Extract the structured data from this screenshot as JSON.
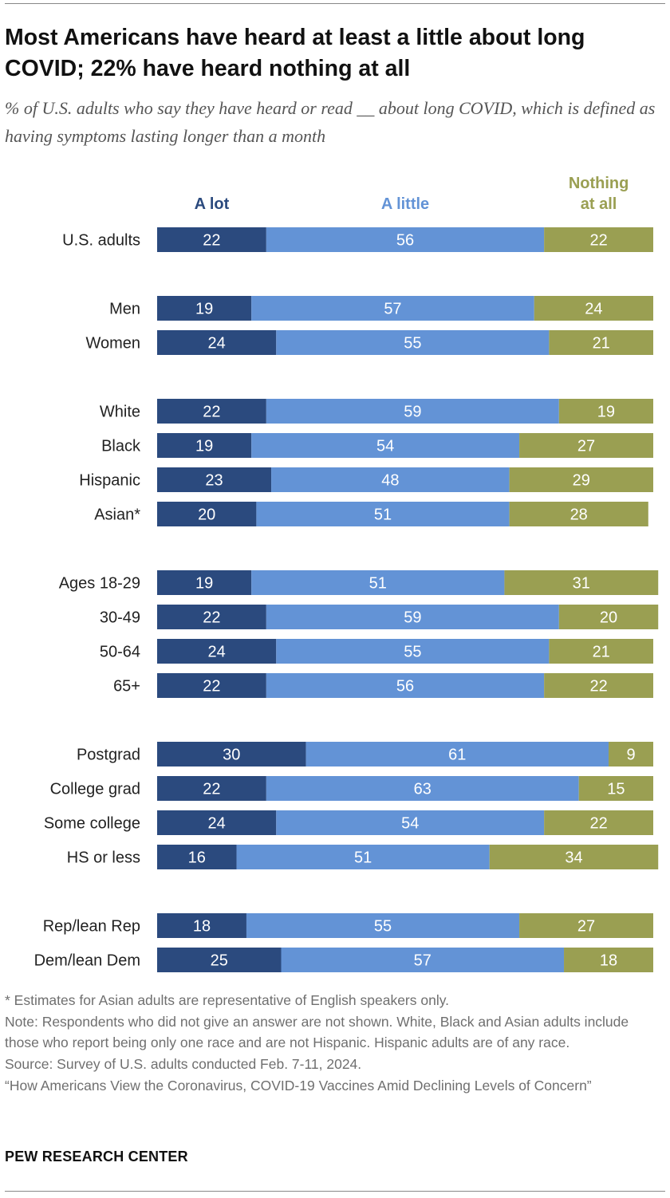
{
  "title": "Most Americans have heard at least a little about long COVID; 22% have heard nothing at all",
  "subtitle": "% of U.S. adults who say they have heard or read __ about long COVID, which is defined as having symptoms lasting longer than a month",
  "chart_data": {
    "type": "bar",
    "orientation": "horizontal",
    "stacked": true,
    "xlim": [
      0,
      100
    ],
    "grid": false,
    "legend": "top",
    "categories": [
      "U.S. adults",
      "Men",
      "Women",
      "White",
      "Black",
      "Hispanic",
      "Asian*",
      "Ages 18-29",
      "30-49",
      "50-64",
      "65+",
      "Postgrad",
      "College grad",
      "Some college",
      "HS or less",
      "Rep/lean Rep",
      "Dem/lean Dem"
    ],
    "groups": [
      [
        0
      ],
      [
        1,
        2
      ],
      [
        3,
        4,
        5,
        6
      ],
      [
        7,
        8,
        9,
        10
      ],
      [
        11,
        12,
        13,
        14
      ],
      [
        15,
        16
      ]
    ],
    "series": [
      {
        "name": "A lot",
        "color": "#2b4a7e",
        "values": [
          22,
          19,
          24,
          22,
          19,
          23,
          20,
          19,
          22,
          24,
          22,
          30,
          22,
          24,
          16,
          18,
          25
        ]
      },
      {
        "name": "A little",
        "color": "#6393d6",
        "values": [
          56,
          57,
          55,
          59,
          54,
          48,
          51,
          51,
          59,
          55,
          56,
          61,
          63,
          54,
          51,
          55,
          57
        ]
      },
      {
        "name": "Nothing at all",
        "color": "#9a9f52",
        "values": [
          22,
          24,
          21,
          19,
          27,
          29,
          28,
          31,
          20,
          21,
          22,
          9,
          15,
          22,
          34,
          27,
          18
        ]
      }
    ],
    "legend_lines": [
      [
        "A lot"
      ],
      [
        "A little"
      ],
      [
        "Nothing",
        "at all"
      ]
    ]
  },
  "footer": {
    "asterisk_note": "* Estimates for Asian adults are representative of English speakers only.",
    "note": "Note: Respondents who did not give an answer are not shown. White, Black and Asian adults include those who report being only one race and are not Hispanic. Hispanic adults are of any race.",
    "source": "Source: Survey of U.S. adults conducted Feb. 7-11, 2024.",
    "report": "“How Americans View the Coronavirus, COVID-19 Vaccines Amid Declining Levels of Concern”"
  },
  "brand": "PEW RESEARCH CENTER"
}
